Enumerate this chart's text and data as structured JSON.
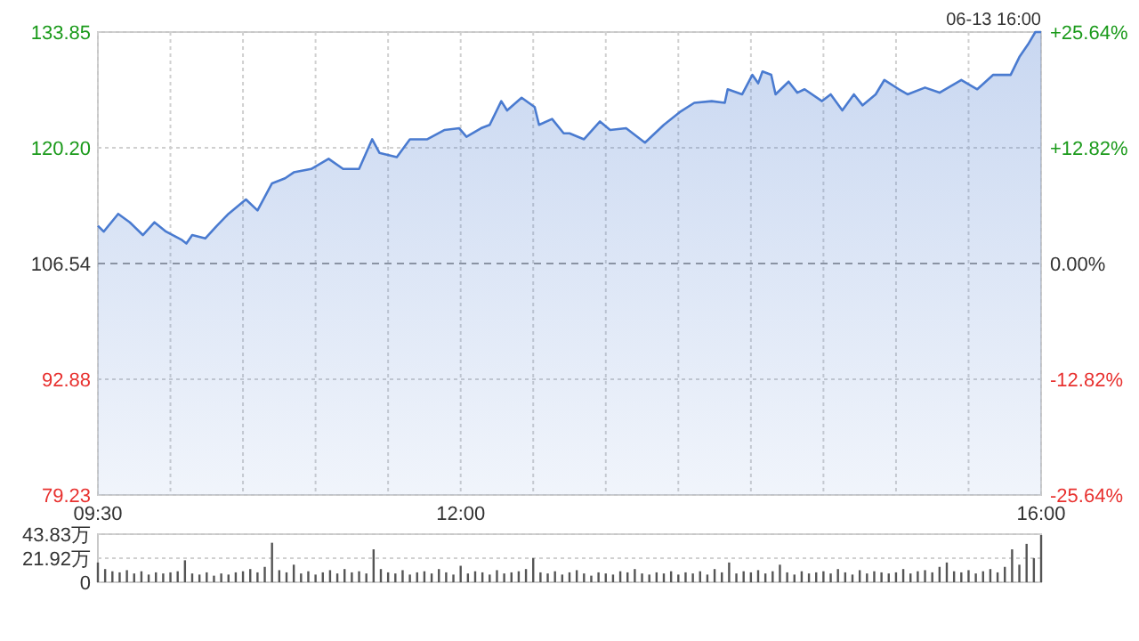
{
  "chart_data": [
    {
      "type": "area",
      "annotations": [
        "06-13 16:00"
      ],
      "x": [
        9.5,
        9.54,
        9.64,
        9.72,
        9.81,
        9.89,
        9.97,
        10.08,
        10.11,
        10.15,
        10.24,
        10.32,
        10.4,
        10.52,
        10.6,
        10.7,
        10.79,
        10.85,
        10.97,
        11.09,
        11.19,
        11.3,
        11.39,
        11.44,
        11.56,
        11.65,
        11.77,
        11.89,
        11.99,
        12.04,
        12.14,
        12.2,
        12.28,
        12.32,
        12.42,
        12.51,
        12.54,
        12.63,
        12.71,
        12.75,
        12.85,
        12.96,
        13.03,
        13.14,
        13.27,
        13.4,
        13.51,
        13.61,
        13.73,
        13.82,
        13.84,
        13.94,
        14.01,
        14.05,
        14.08,
        14.14,
        14.17,
        14.26,
        14.32,
        14.37,
        14.49,
        14.55,
        14.63,
        14.71,
        14.77,
        14.86,
        14.92,
        15.02,
        15.08,
        15.2,
        15.3,
        15.45,
        15.56,
        15.67,
        15.79,
        15.85,
        15.91,
        15.96,
        16.0
      ],
      "series": [
        {
          "color": "#4a7bd0",
          "values": [
            111.0,
            110.3,
            112.4,
            111.4,
            109.9,
            111.4,
            110.3,
            109.3,
            108.9,
            109.9,
            109.5,
            111.0,
            112.4,
            114.1,
            112.8,
            116.0,
            116.6,
            117.3,
            117.7,
            118.9,
            117.7,
            117.7,
            121.2,
            119.6,
            119.1,
            121.2,
            121.2,
            122.3,
            122.5,
            121.5,
            122.5,
            122.9,
            125.7,
            124.6,
            126.1,
            125.0,
            122.9,
            123.6,
            121.9,
            121.9,
            121.2,
            123.3,
            122.3,
            122.5,
            120.8,
            122.9,
            124.4,
            125.5,
            125.7,
            125.5,
            127.1,
            126.5,
            128.8,
            127.8,
            129.2,
            128.8,
            126.5,
            128.0,
            126.7,
            127.1,
            125.7,
            126.5,
            124.6,
            126.5,
            125.2,
            126.5,
            128.2,
            127.1,
            126.5,
            127.3,
            126.7,
            128.2,
            127.1,
            128.8,
            128.8,
            130.9,
            132.4,
            133.85,
            133.85
          ]
        }
      ],
      "xlim": [
        9.5,
        16
      ],
      "xticks": [
        {
          "value": 9.5,
          "label": "09:30"
        },
        {
          "value": 10,
          "label": null
        },
        {
          "value": 10.5,
          "label": null
        },
        {
          "value": 11,
          "label": null
        },
        {
          "value": 11.5,
          "label": null
        },
        {
          "value": 12,
          "label": "12:00"
        },
        {
          "value": 12.5,
          "label": null
        },
        {
          "value": 13,
          "label": null
        },
        {
          "value": 13.5,
          "label": null
        },
        {
          "value": 14,
          "label": null
        },
        {
          "value": 14.5,
          "label": null
        },
        {
          "value": 15,
          "label": null
        },
        {
          "value": 15.5,
          "label": null
        },
        {
          "value": 16,
          "label": "16:00"
        }
      ],
      "ylim": [
        79.23,
        133.85
      ],
      "yticks": [
        79.23,
        92.88,
        106.54,
        "120.20",
        133.85
      ],
      "y2lim": [
        -25.64,
        25.64
      ],
      "y2ticks": [
        {
          "value": -25.64,
          "label": "-25.64%"
        },
        {
          "value": -12.82,
          "label": "-12.82%"
        },
        {
          "value": 0,
          "label": "0.00%"
        },
        {
          "value": 12.82,
          "label": "+12.82%"
        },
        {
          "value": 25.64,
          "label": "+25.64%"
        }
      ],
      "ref_lines": [
        {
          "axis": "y",
          "value": 106.54,
          "color": "#999999",
          "line_style": "dashed"
        }
      ],
      "grid": true
    },
    {
      "type": "bar",
      "tick_labels": "y",
      "x": [
        9.5,
        9.55,
        9.6,
        9.65,
        9.7,
        9.75,
        9.8,
        9.85,
        9.9,
        9.95,
        10,
        10.05,
        10.1,
        10.15,
        10.2,
        10.25,
        10.3,
        10.35,
        10.4,
        10.45,
        10.5,
        10.55,
        10.6,
        10.65,
        10.7,
        10.75,
        10.8,
        10.85,
        10.9,
        10.95,
        11,
        11.05,
        11.1,
        11.15,
        11.2,
        11.25,
        11.3,
        11.35,
        11.4,
        11.45,
        11.5,
        11.55,
        11.6,
        11.65,
        11.7,
        11.75,
        11.8,
        11.85,
        11.9,
        11.95,
        12,
        12.05,
        12.1,
        12.15,
        12.2,
        12.25,
        12.3,
        12.35,
        12.4,
        12.45,
        12.5,
        12.55,
        12.6,
        12.65,
        12.7,
        12.75,
        12.8,
        12.85,
        12.9,
        12.95,
        13,
        13.05,
        13.1,
        13.15,
        13.2,
        13.25,
        13.3,
        13.35,
        13.4,
        13.45,
        13.5,
        13.55,
        13.6,
        13.65,
        13.7,
        13.75,
        13.8,
        13.85,
        13.9,
        13.95,
        14,
        14.05,
        14.1,
        14.15,
        14.2,
        14.25,
        14.3,
        14.35,
        14.4,
        14.45,
        14.5,
        14.55,
        14.6,
        14.65,
        14.7,
        14.75,
        14.8,
        14.85,
        14.9,
        14.95,
        15,
        15.05,
        15.1,
        15.15,
        15.2,
        15.25,
        15.3,
        15.35,
        15.4,
        15.45,
        15.5,
        15.55,
        15.6,
        15.65,
        15.7,
        15.75,
        15.8,
        15.85,
        15.9,
        15.95,
        16
      ],
      "series": [
        {
          "color": "#555555",
          "values": [
            18,
            12,
            10,
            9,
            11,
            8,
            10,
            7,
            9,
            8,
            9,
            10,
            20,
            8,
            7,
            9,
            6,
            8,
            7,
            9,
            10,
            12,
            9,
            14,
            36,
            11,
            9,
            16,
            8,
            10,
            7,
            9,
            11,
            8,
            12,
            9,
            10,
            8,
            30,
            12,
            9,
            8,
            11,
            7,
            9,
            10,
            8,
            12,
            9,
            7,
            15,
            8,
            10,
            9,
            7,
            11,
            8,
            9,
            10,
            12,
            22,
            9,
            8,
            10,
            7,
            9,
            11,
            8,
            6,
            9,
            8,
            7,
            10,
            9,
            12,
            8,
            7,
            9,
            8,
            10,
            7,
            9,
            8,
            10,
            7,
            12,
            9,
            18,
            8,
            10,
            9,
            11,
            8,
            10,
            16,
            9,
            7,
            10,
            8,
            9,
            10,
            8,
            12,
            9,
            7,
            11,
            8,
            10,
            9,
            8,
            9,
            12,
            8,
            10,
            11,
            9,
            14,
            18,
            10,
            9,
            11,
            8,
            10,
            12,
            9,
            14,
            30,
            16,
            35,
            22,
            43
          ]
        }
      ],
      "xlim": [
        9.5,
        16
      ],
      "ylim": [
        0,
        43.83
      ],
      "yticks": [
        0,
        {
          "value": 21.92,
          "label": "21.92万"
        },
        {
          "value": 43.83,
          "label": "43.83万"
        }
      ],
      "grid": "y"
    }
  ]
}
